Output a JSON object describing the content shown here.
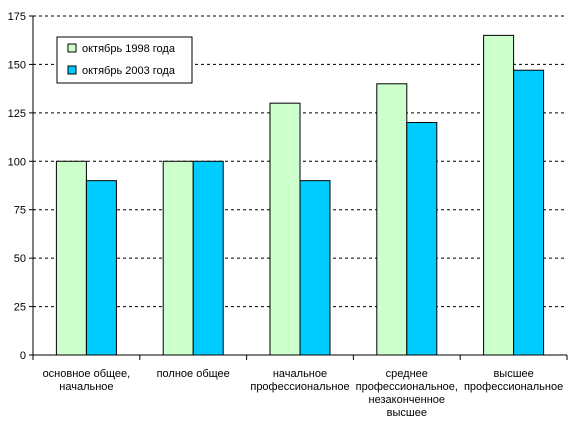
{
  "chart_data": {
    "type": "bar",
    "categories": [
      [
        "основное общее,",
        "начальное"
      ],
      [
        "полное общее"
      ],
      [
        "начальное",
        "профессиональное"
      ],
      [
        "среднее",
        "профессиональное,",
        "незаконченное",
        "высшее"
      ],
      [
        "высшее",
        "профессиональное"
      ]
    ],
    "series": [
      {
        "name": "октябрь 1998 года",
        "values": [
          100,
          100,
          130,
          140,
          165
        ],
        "color": "#ccffcc"
      },
      {
        "name": "октябрь 2003 года",
        "values": [
          90,
          100,
          90,
          120,
          147
        ],
        "color": "#00ccff"
      }
    ],
    "ylim": [
      0,
      175
    ],
    "yticks": [
      0,
      25,
      50,
      75,
      100,
      125,
      150,
      175
    ],
    "grid": true,
    "legend": "top-left"
  }
}
